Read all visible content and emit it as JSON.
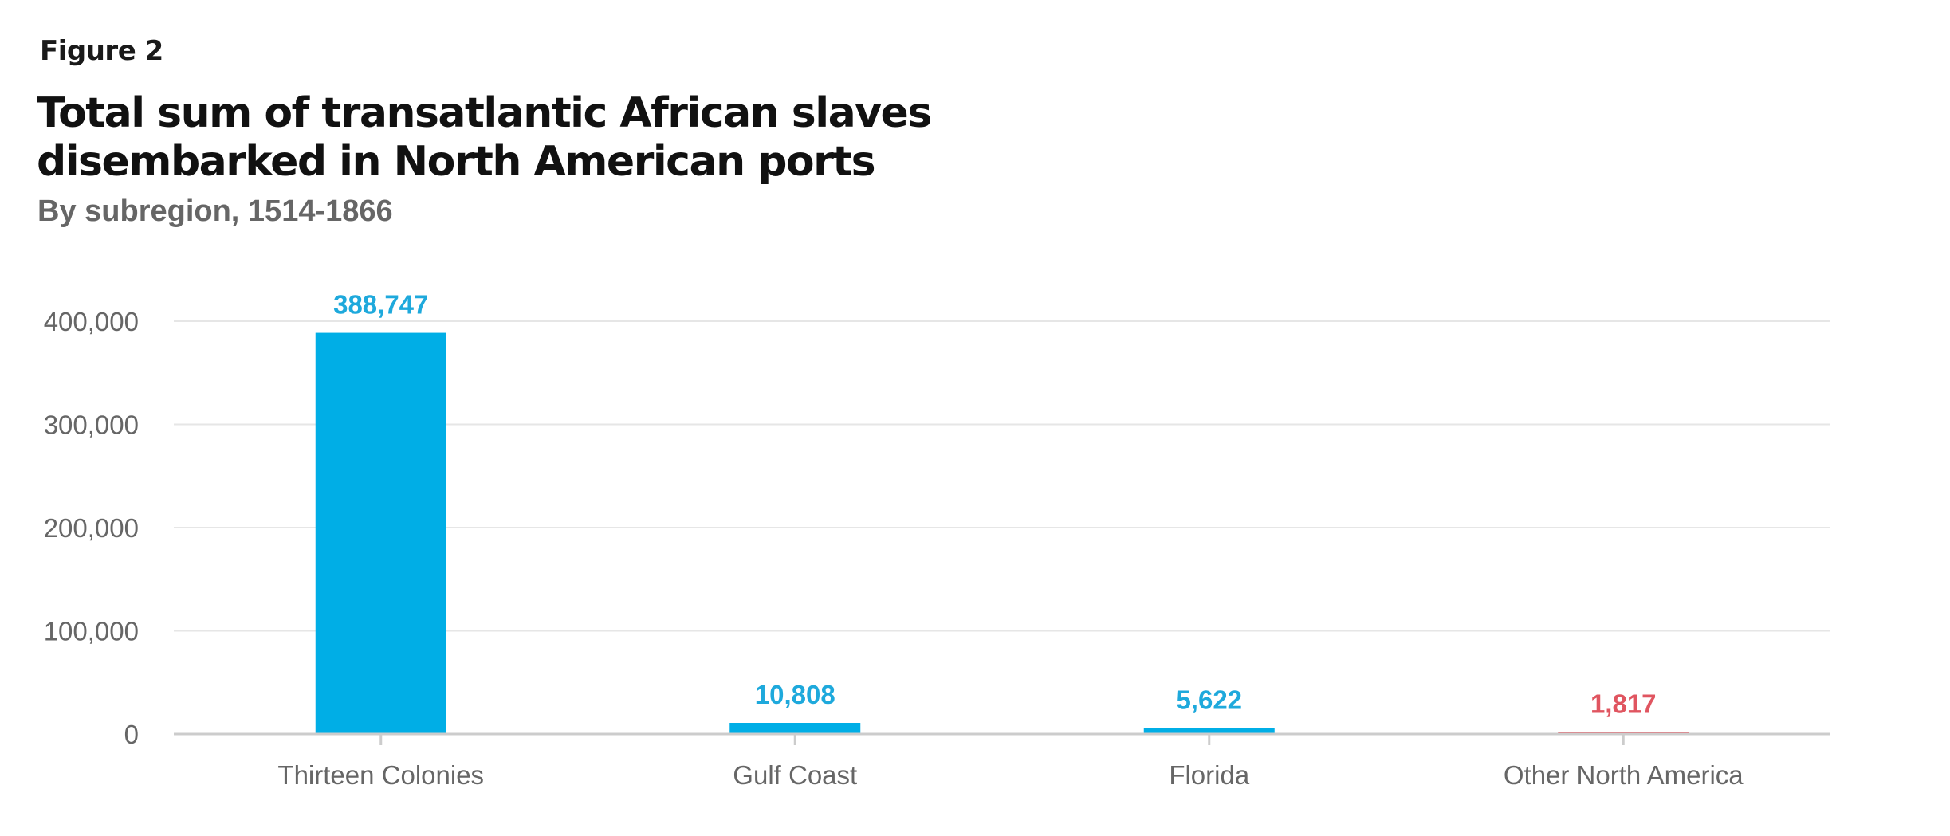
{
  "figure_label": "Figure 2",
  "chart_data": {
    "type": "bar",
    "title": "Total sum of transatlantic African slaves disembarked in North American ports",
    "subtitle": "By subregion, 1514-1866",
    "xlabel": "",
    "ylabel": "",
    "categories": [
      "Thirteen Colonies",
      "Gulf Coast",
      "Florida",
      "Other North America"
    ],
    "values": [
      388747,
      10808,
      5622,
      1817
    ],
    "data_labels": [
      "388,747",
      "10,808",
      "5,622",
      "1,817"
    ],
    "bar_colors": [
      "#00aee6",
      "#00aee6",
      "#00aee6",
      "#e8505b"
    ],
    "label_colors": [
      "#1ea9dc",
      "#1ea9dc",
      "#1ea9dc",
      "#e05560"
    ],
    "ylim": [
      0,
      400000
    ],
    "yticks": [
      0,
      100000,
      200000,
      300000,
      400000
    ],
    "ytick_labels": [
      "0",
      "100,000",
      "200,000",
      "300,000",
      "400,000"
    ],
    "grid": true,
    "legend": "none"
  },
  "colors": {
    "grid": "#e6e6e6",
    "axis": "#cccccc",
    "tick_text": "#666666"
  }
}
